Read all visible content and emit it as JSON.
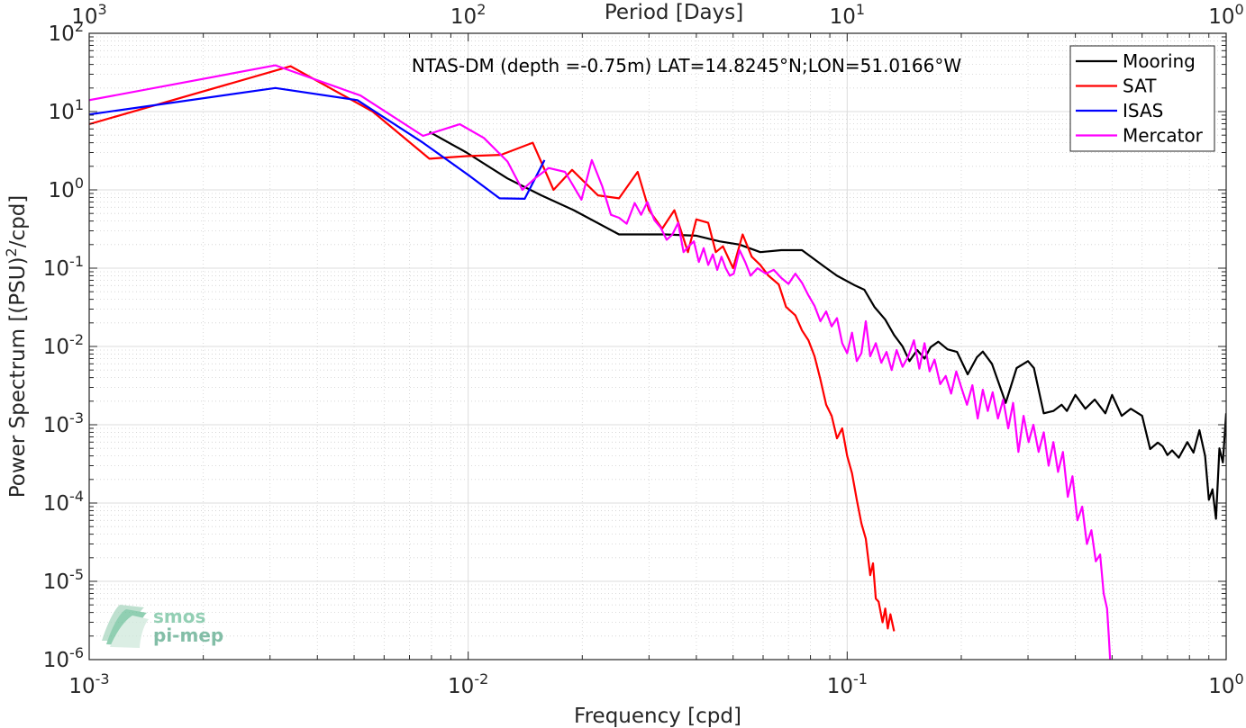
{
  "chart_data": {
    "type": "line",
    "title": "NTAS-DM (depth =-0.75m) LAT=14.8245°N;LON=51.0166°W",
    "xlabel": "Frequency [cpd]",
    "ylabel": "Power Spectrum [(PSU)²/cpd]",
    "x2label": "Period [Days]",
    "xscale": "log",
    "yscale": "log",
    "xlim": [
      0.001,
      1
    ],
    "ylim": [
      1e-06,
      100
    ],
    "grid": true,
    "minor_grid": true,
    "legend_position": "top-right",
    "x_ticks": [
      {
        "value": 0.001,
        "base": "10",
        "exp": "-3"
      },
      {
        "value": 0.01,
        "base": "10",
        "exp": "-2"
      },
      {
        "value": 0.1,
        "base": "10",
        "exp": "-1"
      },
      {
        "value": 1,
        "base": "10",
        "exp": "0"
      }
    ],
    "x2_ticks": [
      {
        "value": 0.001,
        "base": "10",
        "exp": "3"
      },
      {
        "value": 0.01,
        "base": "10",
        "exp": "2"
      },
      {
        "value": 0.1,
        "base": "10",
        "exp": "1"
      },
      {
        "value": 1,
        "base": "10",
        "exp": "0"
      }
    ],
    "y_ticks": [
      {
        "value": 100,
        "base": "10",
        "exp": "2"
      },
      {
        "value": 10,
        "base": "10",
        "exp": "1"
      },
      {
        "value": 1,
        "base": "10",
        "exp": "0"
      },
      {
        "value": 0.1,
        "base": "10",
        "exp": "-1"
      },
      {
        "value": 0.01,
        "base": "10",
        "exp": "-2"
      },
      {
        "value": 0.001,
        "base": "10",
        "exp": "-3"
      },
      {
        "value": 0.0001,
        "base": "10",
        "exp": "-4"
      },
      {
        "value": 1e-05,
        "base": "10",
        "exp": "-5"
      },
      {
        "value": 1e-06,
        "base": "10",
        "exp": "-6"
      }
    ],
    "series": [
      {
        "name": "Mooring",
        "color": "#000000",
        "points": [
          [
            0.0079,
            5.5
          ],
          [
            0.0099,
            3.0
          ],
          [
            0.0127,
            1.4
          ],
          [
            0.0156,
            0.85
          ],
          [
            0.019,
            0.55
          ],
          [
            0.025,
            0.27
          ],
          [
            0.033,
            0.27
          ],
          [
            0.04,
            0.26
          ],
          [
            0.046,
            0.22
          ],
          [
            0.052,
            0.2
          ],
          [
            0.059,
            0.16
          ],
          [
            0.067,
            0.17
          ],
          [
            0.076,
            0.17
          ],
          [
            0.087,
            0.105
          ],
          [
            0.094,
            0.08
          ],
          [
            0.105,
            0.06
          ],
          [
            0.111,
            0.053
          ],
          [
            0.118,
            0.032
          ],
          [
            0.126,
            0.022
          ],
          [
            0.133,
            0.014
          ],
          [
            0.14,
            0.01
          ],
          [
            0.146,
            0.0065
          ],
          [
            0.153,
            0.009
          ],
          [
            0.16,
            0.007
          ],
          [
            0.166,
            0.0098
          ],
          [
            0.174,
            0.0115
          ],
          [
            0.184,
            0.0092
          ],
          [
            0.195,
            0.0085
          ],
          [
            0.208,
            0.0044
          ],
          [
            0.22,
            0.0073
          ],
          [
            0.228,
            0.0086
          ],
          [
            0.241,
            0.006
          ],
          [
            0.262,
            0.0019
          ],
          [
            0.28,
            0.0053
          ],
          [
            0.3,
            0.0065
          ],
          [
            0.311,
            0.0053
          ],
          [
            0.33,
            0.0014
          ],
          [
            0.35,
            0.0015
          ],
          [
            0.368,
            0.0018
          ],
          [
            0.38,
            0.0015
          ],
          [
            0.4,
            0.0024
          ],
          [
            0.425,
            0.0016
          ],
          [
            0.45,
            0.0021
          ],
          [
            0.48,
            0.0014
          ],
          [
            0.5,
            0.0024
          ],
          [
            0.53,
            0.0013
          ],
          [
            0.56,
            0.0016
          ],
          [
            0.6,
            0.0013
          ],
          [
            0.63,
            0.00049
          ],
          [
            0.66,
            0.00059
          ],
          [
            0.68,
            0.00053
          ],
          [
            0.7,
            0.00041
          ],
          [
            0.72,
            0.00047
          ],
          [
            0.75,
            0.00038
          ],
          [
            0.79,
            0.0006
          ],
          [
            0.82,
            0.00044
          ],
          [
            0.85,
            0.00085
          ],
          [
            0.88,
            0.0004
          ],
          [
            0.9,
            0.00011
          ],
          [
            0.92,
            0.00015
          ],
          [
            0.94,
            6.3e-05
          ],
          [
            0.96,
            0.0005
          ],
          [
            0.98,
            0.00033
          ],
          [
            1.0,
            0.0014
          ]
        ]
      },
      {
        "name": "SAT",
        "color": "#ff0000",
        "points": [
          [
            0.001,
            6.9
          ],
          [
            0.0034,
            38
          ],
          [
            0.0056,
            10
          ],
          [
            0.0079,
            2.5
          ],
          [
            0.0099,
            2.7
          ],
          [
            0.0122,
            2.8
          ],
          [
            0.0148,
            4.0
          ],
          [
            0.0168,
            1.0
          ],
          [
            0.0188,
            1.8
          ],
          [
            0.022,
            0.85
          ],
          [
            0.025,
            0.78
          ],
          [
            0.028,
            1.7
          ],
          [
            0.03,
            0.55
          ],
          [
            0.0325,
            0.32
          ],
          [
            0.035,
            0.55
          ],
          [
            0.038,
            0.16
          ],
          [
            0.04,
            0.42
          ],
          [
            0.043,
            0.38
          ],
          [
            0.045,
            0.16
          ],
          [
            0.047,
            0.19
          ],
          [
            0.05,
            0.1
          ],
          [
            0.053,
            0.27
          ],
          [
            0.056,
            0.14
          ],
          [
            0.059,
            0.11
          ],
          [
            0.062,
            0.08
          ],
          [
            0.066,
            0.062
          ],
          [
            0.069,
            0.032
          ],
          [
            0.073,
            0.025
          ],
          [
            0.076,
            0.016
          ],
          [
            0.079,
            0.012
          ],
          [
            0.082,
            0.0075
          ],
          [
            0.085,
            0.0038
          ],
          [
            0.088,
            0.0018
          ],
          [
            0.091,
            0.0013
          ],
          [
            0.094,
            0.00067
          ],
          [
            0.097,
            0.0009
          ],
          [
            0.1,
            0.0004
          ],
          [
            0.103,
            0.00024
          ],
          [
            0.106,
            0.00011
          ],
          [
            0.109,
            5.5e-05
          ],
          [
            0.112,
            3.5e-05
          ],
          [
            0.115,
            1.2e-05
          ],
          [
            0.117,
            1.7e-05
          ],
          [
            0.119,
            6e-06
          ],
          [
            0.121,
            5.5e-06
          ],
          [
            0.124,
            3e-06
          ],
          [
            0.126,
            4.5e-06
          ],
          [
            0.128,
            2.5e-06
          ],
          [
            0.13,
            3.8e-06
          ],
          [
            0.133,
            2.3e-06
          ]
        ]
      },
      {
        "name": "ISAS",
        "color": "#0000ff",
        "points": [
          [
            0.001,
            9.2
          ],
          [
            0.0031,
            20
          ],
          [
            0.0051,
            14
          ],
          [
            0.0076,
            4.0
          ],
          [
            0.0101,
            1.5
          ],
          [
            0.0121,
            0.78
          ],
          [
            0.0141,
            0.77
          ],
          [
            0.0159,
            2.4
          ]
        ]
      },
      {
        "name": "Mercator",
        "color": "#ff00ff",
        "points": [
          [
            0.001,
            14
          ],
          [
            0.0031,
            39
          ],
          [
            0.0052,
            16
          ],
          [
            0.0076,
            4.9
          ],
          [
            0.0095,
            6.9
          ],
          [
            0.011,
            4.6
          ],
          [
            0.0127,
            2.3
          ],
          [
            0.0139,
            1.0
          ],
          [
            0.015,
            1.4
          ],
          [
            0.0163,
            1.9
          ],
          [
            0.018,
            1.7
          ],
          [
            0.0199,
            0.75
          ],
          [
            0.0212,
            2.4
          ],
          [
            0.0226,
            1.1
          ],
          [
            0.0238,
            0.48
          ],
          [
            0.025,
            0.44
          ],
          [
            0.0262,
            0.37
          ],
          [
            0.0275,
            0.68
          ],
          [
            0.0286,
            0.48
          ],
          [
            0.0297,
            0.7
          ],
          [
            0.031,
            0.41
          ],
          [
            0.0322,
            0.33
          ],
          [
            0.0334,
            0.23
          ],
          [
            0.0346,
            0.27
          ],
          [
            0.0358,
            0.38
          ],
          [
            0.037,
            0.16
          ],
          [
            0.0382,
            0.19
          ],
          [
            0.0394,
            0.22
          ],
          [
            0.0406,
            0.12
          ],
          [
            0.0418,
            0.18
          ],
          [
            0.043,
            0.11
          ],
          [
            0.0442,
            0.15
          ],
          [
            0.0454,
            0.095
          ],
          [
            0.0466,
            0.14
          ],
          [
            0.0478,
            0.1
          ],
          [
            0.049,
            0.08
          ],
          [
            0.0502,
            0.085
          ],
          [
            0.052,
            0.17
          ],
          [
            0.0538,
            0.12
          ],
          [
            0.0556,
            0.08
          ],
          [
            0.058,
            0.1
          ],
          [
            0.061,
            0.085
          ],
          [
            0.064,
            0.095
          ],
          [
            0.067,
            0.075
          ],
          [
            0.07,
            0.063
          ],
          [
            0.073,
            0.085
          ],
          [
            0.076,
            0.065
          ],
          [
            0.079,
            0.045
          ],
          [
            0.082,
            0.033
          ],
          [
            0.085,
            0.021
          ],
          [
            0.088,
            0.028
          ],
          [
            0.091,
            0.018
          ],
          [
            0.094,
            0.023
          ],
          [
            0.097,
            0.011
          ],
          [
            0.1,
            0.0082
          ],
          [
            0.103,
            0.015
          ],
          [
            0.106,
            0.0065
          ],
          [
            0.109,
            0.0082
          ],
          [
            0.112,
            0.021
          ],
          [
            0.115,
            0.0075
          ],
          [
            0.119,
            0.011
          ],
          [
            0.123,
            0.0062
          ],
          [
            0.127,
            0.0085
          ],
          [
            0.131,
            0.005
          ],
          [
            0.135,
            0.009
          ],
          [
            0.14,
            0.0055
          ],
          [
            0.145,
            0.0075
          ],
          [
            0.15,
            0.012
          ],
          [
            0.155,
            0.0052
          ],
          [
            0.16,
            0.011
          ],
          [
            0.165,
            0.0048
          ],
          [
            0.17,
            0.0068
          ],
          [
            0.176,
            0.0033
          ],
          [
            0.182,
            0.0042
          ],
          [
            0.188,
            0.0025
          ],
          [
            0.194,
            0.0048
          ],
          [
            0.2,
            0.003
          ],
          [
            0.207,
            0.0018
          ],
          [
            0.214,
            0.0032
          ],
          [
            0.221,
            0.0012
          ],
          [
            0.228,
            0.0028
          ],
          [
            0.235,
            0.0015
          ],
          [
            0.242,
            0.0026
          ],
          [
            0.25,
            0.0012
          ],
          [
            0.258,
            0.0021
          ],
          [
            0.266,
            0.0009
          ],
          [
            0.274,
            0.0019
          ],
          [
            0.283,
            0.00045
          ],
          [
            0.292,
            0.0013
          ],
          [
            0.301,
            0.0006
          ],
          [
            0.31,
            0.001
          ],
          [
            0.32,
            0.00045
          ],
          [
            0.33,
            0.0008
          ],
          [
            0.34,
            0.0003
          ],
          [
            0.35,
            0.0006
          ],
          [
            0.36,
            0.00025
          ],
          [
            0.371,
            0.00045
          ],
          [
            0.382,
            0.00012
          ],
          [
            0.393,
            0.00022
          ],
          [
            0.405,
            6e-05
          ],
          [
            0.417,
            9e-05
          ],
          [
            0.429,
            3e-05
          ],
          [
            0.441,
            4.5e-05
          ],
          [
            0.453,
            1.8e-05
          ],
          [
            0.465,
            2.2e-05
          ],
          [
            0.475,
            7e-06
          ],
          [
            0.485,
            4.5e-06
          ],
          [
            0.49,
            2e-06
          ],
          [
            0.494,
            1e-06
          ]
        ]
      }
    ]
  },
  "logo": {
    "line1": "smos",
    "line2": "pi-mep"
  }
}
